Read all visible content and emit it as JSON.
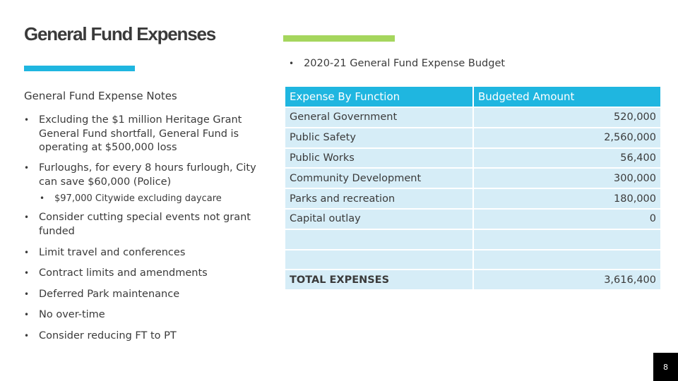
{
  "title": "General Fund Expenses",
  "budget_heading": "2020-21 General Fund Expense Budget",
  "notes_title": "General Fund Expense Notes",
  "notes": [
    "Excluding the $1 million Heritage Grant General Fund shortfall, General Fund is operating at $500,000 loss",
    "Furloughs, for every 8 hours furlough, City can save $60,000 (Police)",
    "$97,000 Citywide excluding daycare",
    "Consider cutting special events not grant funded",
    "Limit travel and conferences",
    "Contract limits and amendments",
    "Deferred Park maintenance",
    "No over-time",
    "Consider reducing FT to PT"
  ],
  "table": {
    "headers": [
      "Expense By Function",
      "Budgeted Amount"
    ],
    "rows": [
      {
        "function": "General Government",
        "amount": "520,000"
      },
      {
        "function": "Public Safety",
        "amount": "2,560,000"
      },
      {
        "function": "Public Works",
        "amount": "56,400"
      },
      {
        "function": "Community Development",
        "amount": "300,000"
      },
      {
        "function": "Parks and recreation",
        "amount": "180,000"
      },
      {
        "function": "Capital outlay",
        "amount": "0"
      },
      {
        "function": "",
        "amount": ""
      },
      {
        "function": "",
        "amount": ""
      },
      {
        "function": "TOTAL EXPENSES",
        "amount": "3,616,400"
      }
    ]
  },
  "page_number": "8",
  "colors": {
    "accent_blue": "#1fb6e0",
    "accent_green": "#a5d65d",
    "row_fill": "#d6edf7"
  }
}
